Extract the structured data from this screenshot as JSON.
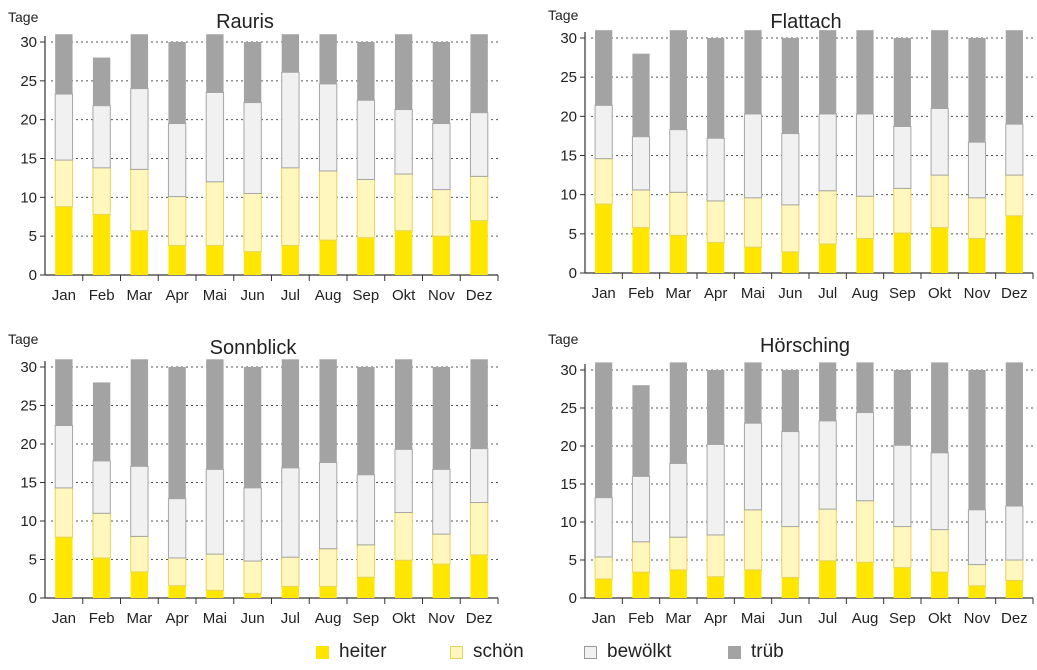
{
  "colors": {
    "heiter": "#ffe600",
    "schoen": "#fff7bd",
    "bewoelkt": "#f1f1f1",
    "trueb": "#a3a3a3"
  },
  "legend": [
    {
      "key": "heiter",
      "label": "heiter"
    },
    {
      "key": "schoen",
      "label": "schön"
    },
    {
      "key": "bewoelkt",
      "label": "bewölkt"
    },
    {
      "key": "trueb",
      "label": "trüb"
    }
  ],
  "chart_data": [
    {
      "type": "bar",
      "stacked": true,
      "title": "Rauris",
      "ylabel": "Tage",
      "ylim": [
        0,
        30
      ],
      "yticks": [
        "0",
        "5",
        "10",
        "15",
        "20",
        "25",
        "30"
      ],
      "grid": "dotted horizontal",
      "categories": [
        "Jan",
        "Feb",
        "Mar",
        "Apr",
        "Mai",
        "Jun",
        "Jul",
        "Aug",
        "Sep",
        "Okt",
        "Nov",
        "Dez"
      ],
      "series": [
        {
          "name": "heiter",
          "values": [
            8.8,
            7.8,
            5.7,
            3.8,
            3.8,
            3.0,
            3.8,
            4.5,
            4.8,
            5.7,
            5.0,
            7.0
          ]
        },
        {
          "name": "schön",
          "values": [
            6.0,
            6.0,
            7.9,
            6.3,
            8.2,
            7.5,
            10.0,
            8.9,
            7.5,
            7.3,
            6.0,
            5.7
          ]
        },
        {
          "name": "bewölkt",
          "values": [
            8.5,
            8.0,
            10.4,
            9.4,
            11.5,
            11.7,
            12.3,
            11.2,
            10.2,
            8.3,
            8.5,
            8.2
          ]
        },
        {
          "name": "trüb",
          "values": [
            7.7,
            6.2,
            7.0,
            10.5,
            7.5,
            7.8,
            4.9,
            6.4,
            7.5,
            9.7,
            10.5,
            10.1
          ]
        }
      ]
    },
    {
      "type": "bar",
      "stacked": true,
      "title": "Flattach",
      "ylabel": "Tage",
      "ylim": [
        0,
        30
      ],
      "yticks": [
        "0",
        "5",
        "10",
        "15",
        "20",
        "25",
        "30"
      ],
      "grid": "dotted horizontal",
      "categories": [
        "Jan",
        "Feb",
        "Mar",
        "Apr",
        "Mai",
        "Jun",
        "Jul",
        "Aug",
        "Sep",
        "Okt",
        "Nov",
        "Dez"
      ],
      "series": [
        {
          "name": "heiter",
          "values": [
            8.8,
            5.8,
            4.8,
            3.9,
            3.3,
            2.7,
            3.7,
            4.4,
            5.1,
            5.8,
            4.4,
            7.3
          ]
        },
        {
          "name": "schön",
          "values": [
            5.8,
            4.8,
            5.5,
            5.3,
            6.3,
            6.0,
            6.8,
            5.4,
            5.7,
            6.7,
            5.2,
            5.2
          ]
        },
        {
          "name": "bewölkt",
          "values": [
            6.8,
            6.8,
            8.0,
            8.0,
            10.7,
            9.1,
            9.8,
            10.5,
            7.9,
            8.5,
            7.1,
            6.5
          ]
        },
        {
          "name": "trüb",
          "values": [
            9.6,
            10.6,
            12.7,
            12.8,
            10.7,
            12.2,
            10.7,
            10.7,
            11.3,
            10.0,
            13.3,
            12.0
          ]
        }
      ]
    },
    {
      "type": "bar",
      "stacked": true,
      "title": "Sonnblick",
      "ylabel": "Tage",
      "ylim": [
        0,
        30
      ],
      "yticks": [
        "0",
        "5",
        "10",
        "15",
        "20",
        "25",
        "30"
      ],
      "grid": "dotted horizontal",
      "categories": [
        "Jan",
        "Feb",
        "Mar",
        "Apr",
        "Mai",
        "Jun",
        "Jul",
        "Aug",
        "Sep",
        "Okt",
        "Nov",
        "Dez"
      ],
      "series": [
        {
          "name": "heiter",
          "values": [
            7.9,
            5.2,
            3.4,
            1.6,
            1.0,
            0.6,
            1.5,
            1.5,
            2.7,
            4.9,
            4.4,
            5.6
          ]
        },
        {
          "name": "schön",
          "values": [
            6.4,
            5.8,
            4.6,
            3.6,
            4.7,
            4.2,
            3.8,
            4.9,
            4.2,
            6.2,
            3.9,
            6.8
          ]
        },
        {
          "name": "bewölkt",
          "values": [
            8.1,
            6.8,
            9.1,
            7.7,
            11.0,
            9.5,
            11.6,
            11.2,
            9.1,
            8.2,
            8.4,
            7.0
          ]
        },
        {
          "name": "trüb",
          "values": [
            8.6,
            10.2,
            13.9,
            17.1,
            14.3,
            15.7,
            14.1,
            13.4,
            14.0,
            11.7,
            13.3,
            11.6
          ]
        }
      ]
    },
    {
      "type": "bar",
      "stacked": true,
      "title": "Hörsching",
      "ylabel": "Tage",
      "ylim": [
        0,
        30
      ],
      "yticks": [
        "0",
        "5",
        "10",
        "15",
        "20",
        "25",
        "30"
      ],
      "grid": "dotted horizontal",
      "categories": [
        "Jan",
        "Feb",
        "Mar",
        "Apr",
        "Mai",
        "Jun",
        "Jul",
        "Aug",
        "Sep",
        "Okt",
        "Nov",
        "Dez"
      ],
      "series": [
        {
          "name": "heiter",
          "values": [
            2.5,
            3.4,
            3.7,
            2.8,
            3.7,
            2.7,
            4.9,
            4.7,
            4.0,
            3.4,
            1.6,
            2.3
          ]
        },
        {
          "name": "schön",
          "values": [
            2.9,
            4.0,
            4.3,
            5.5,
            7.9,
            6.7,
            6.8,
            8.1,
            5.4,
            5.6,
            2.8,
            2.7
          ]
        },
        {
          "name": "bewölkt",
          "values": [
            7.8,
            8.6,
            9.7,
            11.9,
            11.4,
            12.5,
            11.6,
            11.6,
            10.7,
            10.1,
            7.2,
            7.1
          ]
        },
        {
          "name": "trüb",
          "values": [
            17.8,
            12.0,
            13.3,
            9.8,
            8.0,
            8.1,
            7.7,
            6.6,
            9.9,
            11.9,
            18.4,
            18.9
          ]
        }
      ]
    }
  ]
}
